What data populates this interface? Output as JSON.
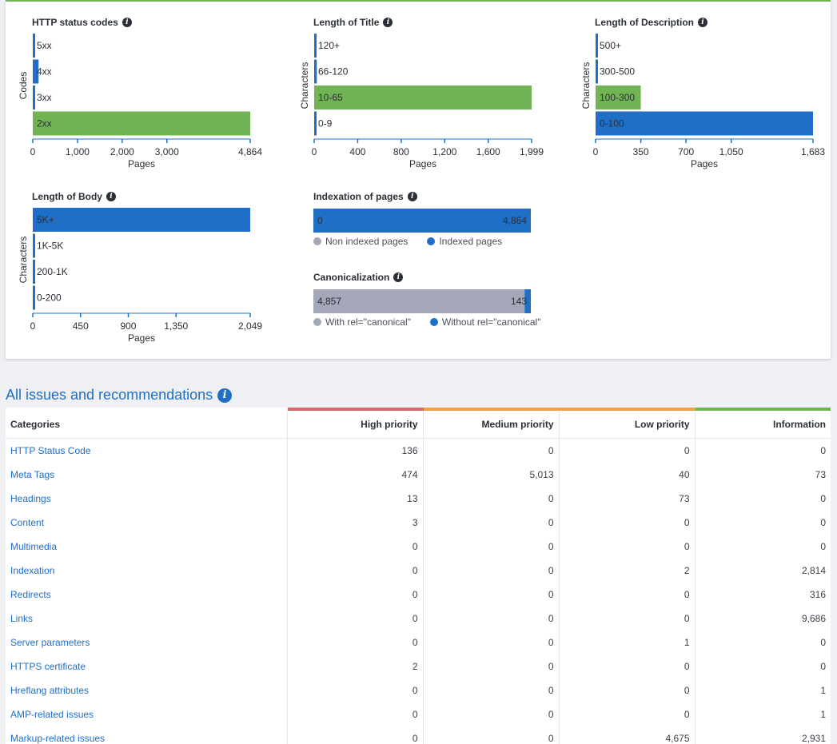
{
  "charts": [
    {
      "id": "status",
      "title": "HTTP status codes",
      "ylabel": "Codes",
      "xlabel": "Pages",
      "categories": [
        "5xx",
        "4xx",
        "3xx",
        "2xx"
      ],
      "values": [
        6,
        130,
        6,
        4864
      ],
      "colors": [
        "#1f6fc7",
        "#1f6fc7",
        "#1f6fc7",
        "#72b356"
      ],
      "ticks": [
        0,
        1000,
        2000,
        3000,
        4864
      ],
      "tick_labels": [
        "0",
        "1,000",
        "2,000",
        "3,000",
        "4,864"
      ],
      "xmax": 4864
    },
    {
      "id": "title",
      "title": "Length of Title",
      "ylabel": "Characters",
      "xlabel": "Pages",
      "categories": [
        "120+",
        "66-120",
        "10-65",
        "0-9"
      ],
      "values": [
        12,
        24,
        1999,
        8
      ],
      "colors": [
        "#1f6fc7",
        "#1f6fc7",
        "#72b356",
        "#1f6fc7"
      ],
      "ticks": [
        0,
        400,
        800,
        1200,
        1600,
        1999
      ],
      "tick_labels": [
        "0",
        "400",
        "800",
        "1,200",
        "1,600",
        "1,999"
      ],
      "xmax": 1999
    },
    {
      "id": "desc",
      "title": "Length of Description",
      "ylabel": "Characters",
      "xlabel": "Pages",
      "categories": [
        "500+",
        "300-500",
        "100-300",
        "0-100"
      ],
      "values": [
        8,
        10,
        350,
        1683
      ],
      "colors": [
        "#1f6fc7",
        "#1f6fc7",
        "#72b356",
        "#1f6fc7"
      ],
      "ticks": [
        0,
        350,
        700,
        1050,
        1683
      ],
      "tick_labels": [
        "0",
        "350",
        "700",
        "1,050",
        "1,683"
      ],
      "xmax": 1683
    },
    {
      "id": "body",
      "title": "Length of Body",
      "ylabel": "Characters",
      "xlabel": "Pages",
      "categories": [
        "5K+",
        "1K-5K",
        "200-1K",
        "0-200"
      ],
      "values": [
        2049,
        8,
        8,
        8
      ],
      "colors": [
        "#1f6fc7",
        "#1f6fc7",
        "#1f6fc7",
        "#1f6fc7"
      ],
      "ticks": [
        0,
        450,
        900,
        1350,
        2049
      ],
      "tick_labels": [
        "0",
        "450",
        "900",
        "1,350",
        "2,049"
      ],
      "xmax": 2049
    }
  ],
  "indexation": {
    "title": "Indexation of pages",
    "non_indexed": 0,
    "indexed": 4864,
    "non_indexed_label": "0",
    "indexed_label": "4,864",
    "legend_non": "Non indexed pages",
    "legend_idx": "Indexed pages",
    "color_non": "#a4a8b8",
    "color_idx": "#1f6fc7"
  },
  "canonical": {
    "title": "Canonicalization",
    "with": 4857,
    "without": 143,
    "with_label": "4,857",
    "without_label": "143",
    "legend_with": "With rel=\"canonical\"",
    "legend_without": "Without rel=\"canonical\"",
    "color_with": "#a4a8b8",
    "color_without": "#1f6fc7"
  },
  "issues": {
    "title": "All issues and recommendations",
    "columns": [
      "Categories",
      "High priority",
      "Medium priority",
      "Low priority",
      "Information"
    ],
    "column_colors": [
      "#ffffff",
      "#d66a6a",
      "#f0a04b",
      "#f0a04b",
      "#72b356"
    ],
    "rows": [
      [
        "HTTP Status Code",
        "136",
        "0",
        "0",
        "0"
      ],
      [
        "Meta Tags",
        "474",
        "5,013",
        "40",
        "73"
      ],
      [
        "Headings",
        "13",
        "0",
        "73",
        "0"
      ],
      [
        "Content",
        "3",
        "0",
        "0",
        "0"
      ],
      [
        "Multimedia",
        "0",
        "0",
        "0",
        "0"
      ],
      [
        "Indexation",
        "0",
        "0",
        "2",
        "2,814"
      ],
      [
        "Redirects",
        "0",
        "0",
        "0",
        "316"
      ],
      [
        "Links",
        "0",
        "0",
        "0",
        "9,686"
      ],
      [
        "Server parameters",
        "0",
        "0",
        "1",
        "0"
      ],
      [
        "HTTPS certificate",
        "2",
        "0",
        "0",
        "0"
      ],
      [
        "Hreflang attributes",
        "0",
        "0",
        "0",
        "1"
      ],
      [
        "AMP-related issues",
        "0",
        "0",
        "0",
        "1"
      ],
      [
        "Markup-related issues",
        "0",
        "0",
        "4,675",
        "2,931"
      ]
    ]
  }
}
